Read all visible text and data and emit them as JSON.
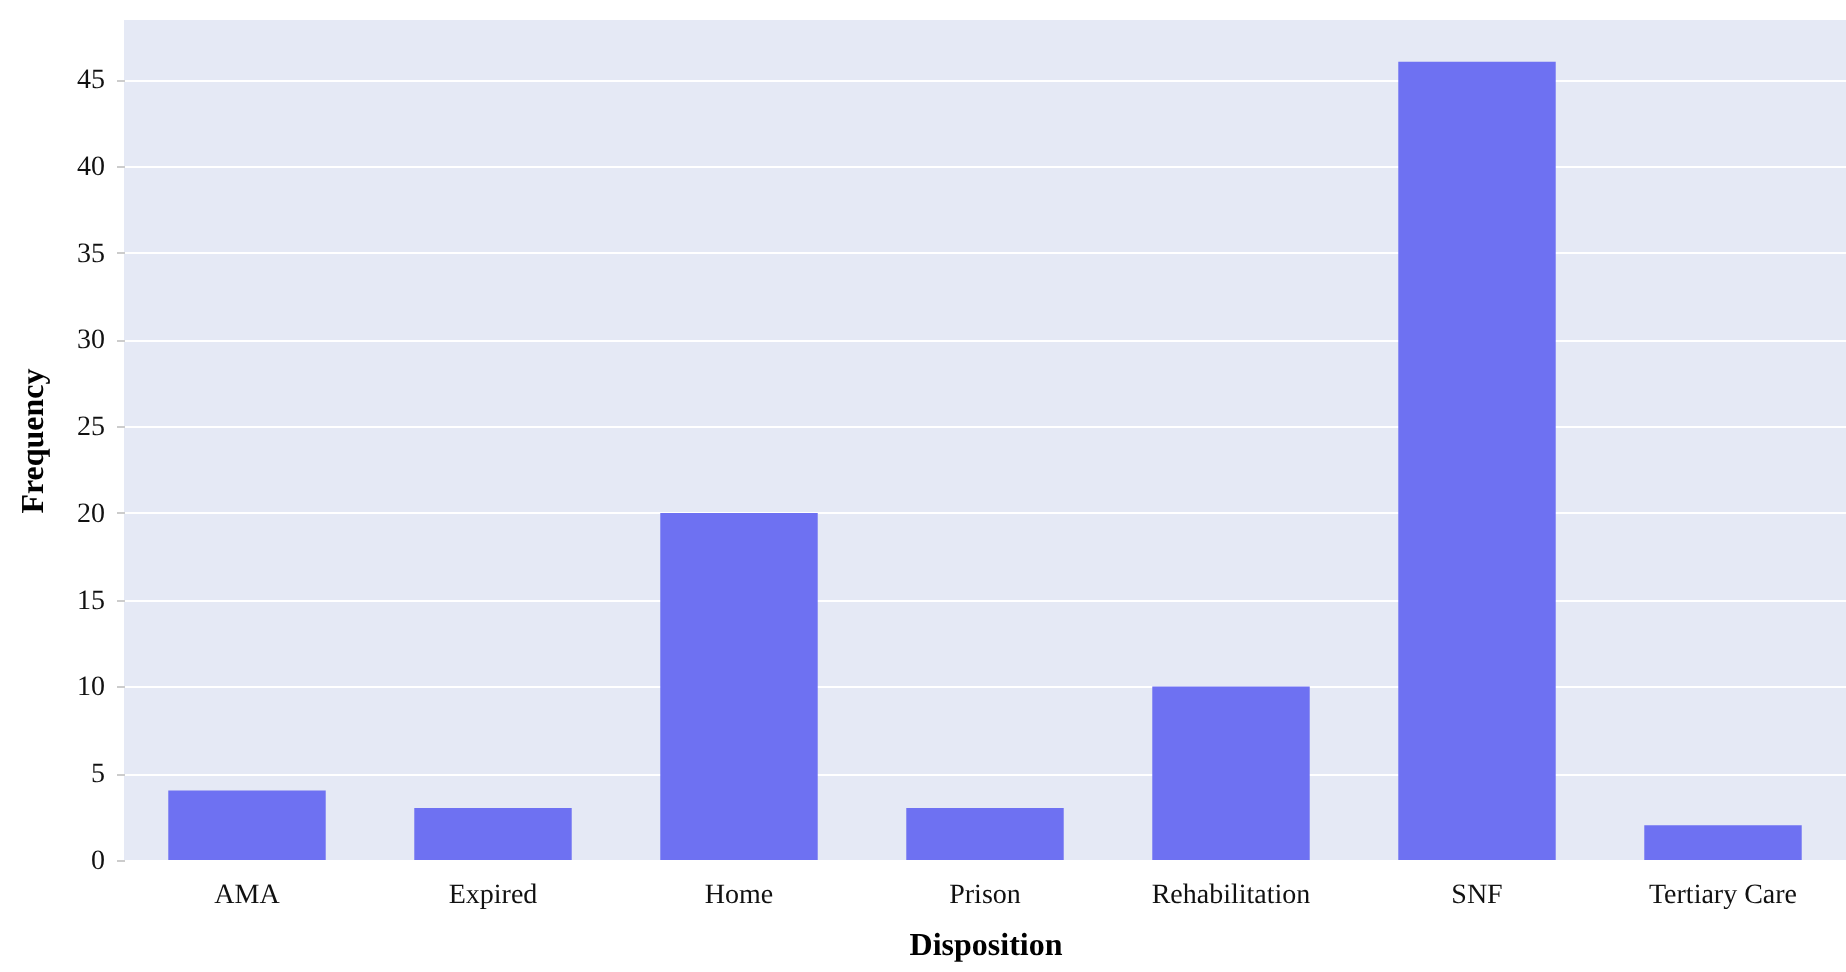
{
  "chart_data": {
    "type": "bar",
    "xlabel": "Disposition",
    "ylabel": "Frequency",
    "categories": [
      "AMA",
      "Expired",
      "Home",
      "Prison",
      "Rehabilitation",
      "SNF",
      "Tertiary Care"
    ],
    "values": [
      4,
      3,
      20,
      3,
      10,
      46,
      2
    ],
    "color": "#6e71f2",
    "ylim": [
      0,
      48.4
    ],
    "yticks": [
      0,
      5,
      10,
      15,
      20,
      25,
      30,
      35,
      40,
      45
    ],
    "grid": "y"
  }
}
